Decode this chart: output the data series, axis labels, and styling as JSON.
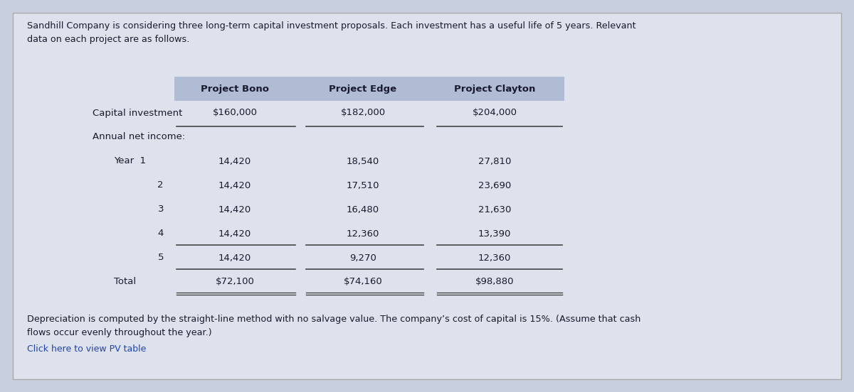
{
  "bg_color": "#c8d0df",
  "panel_color": "#dde2ec",
  "header_bg": "#b0bcd4",
  "title_text": "Sandhill Company is considering three long-term capital investment proposals. Each investment has a useful life of 5 years. Relevant\ndata on each project are as follows.",
  "footer_text": "Depreciation is computed by the straight-line method with no salvage value. The company’s cost of capital is 15%. (Assume that cash\nflows occur evenly throughout the year.)",
  "click_text": "Click here to view PV table",
  "col_headers": [
    "Project Bono",
    "Project Edge",
    "Project Clayton"
  ],
  "row_label_capital": "Capital investment",
  "row_label_annual": "Annual net income:",
  "row_labels_years": [
    "Year  1",
    "2",
    "3",
    "4",
    "5",
    "Total"
  ],
  "capital_values": [
    "$160,000",
    "$182,000",
    "$204,000"
  ],
  "year_values": [
    [
      "14,420",
      "18,540",
      "27,810"
    ],
    [
      "14,420",
      "17,510",
      "23,690"
    ],
    [
      "14,420",
      "16,480",
      "21,630"
    ],
    [
      "14,420",
      "12,360",
      "13,390"
    ],
    [
      "14,420",
      "9,270",
      "12,360"
    ],
    [
      "$72,100",
      "$74,160",
      "$98,880"
    ]
  ],
  "font_size_title": 9.2,
  "font_size_table": 9.5,
  "font_size_footer": 9.2,
  "font_size_click": 9.0,
  "line_color": "#444444"
}
